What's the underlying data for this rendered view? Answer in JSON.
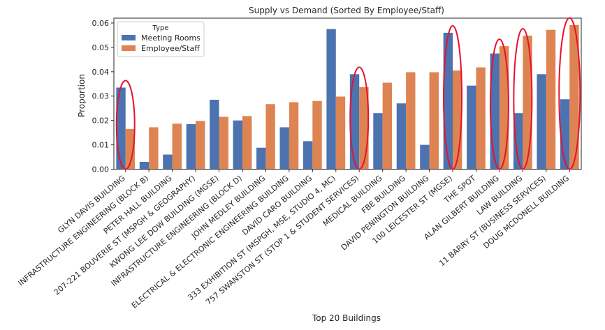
{
  "chart_data": {
    "type": "bar",
    "title": "Supply vs Demand (Sorted By Employee/Staff)",
    "xlabel": "Top 20 Buildings",
    "ylabel": "Proportion",
    "ylim": [
      0,
      0.062
    ],
    "yticks": [
      "0.00",
      "0.01",
      "0.02",
      "0.03",
      "0.04",
      "0.05",
      "0.06"
    ],
    "grid": false,
    "legend": {
      "title": "Type",
      "placement": "top-left"
    },
    "categories": [
      "GLYN DAVIS BUILDING",
      "INFRASTRUCTURE ENGINEERING (BLOCK B)",
      "PETER HALL BUILDING",
      "207-221 BOUVERIE ST (MSPGH & GEOGRAPHY)",
      "KWONG LEE DOW BUILDING (MGSE)",
      "INFRASTRUCTURE ENGINEERING (BLOCK D)",
      "JOHN MEDLEY BUILDING",
      "ELECTRICAL & ELECTRONIC ENGINEERING BUILDING",
      "DAVID CARO BUILDING",
      "333 EXHIBITION ST (MSPGH, MSE, STUDIO 4, MC)",
      "757 SWANSTON ST (STOP 1 & STUDENT SERVICES)",
      "MEDICAL BUILDING",
      "FBE BUILDING",
      "DAVID PENINGTON BUILDING",
      "100 LEICESTER ST (MGSE)",
      "THE SPOT",
      "ALAN GILBERT BUILDING",
      "LAW BUILDING",
      "11 BARRY ST (BUSINESS SERVICES)",
      "DOUG MCDONELL BUILDING"
    ],
    "series": [
      {
        "name": "Meeting Rooms",
        "color": "#4c72b0",
        "values": [
          0.0335,
          0.003,
          0.006,
          0.0185,
          0.0285,
          0.02,
          0.0088,
          0.0172,
          0.0115,
          0.0575,
          0.039,
          0.023,
          0.027,
          0.01,
          0.056,
          0.0343,
          0.0475,
          0.023,
          0.039,
          0.0287
        ]
      },
      {
        "name": "Employee/Staff",
        "color": "#dd8452",
        "values": [
          0.0165,
          0.0172,
          0.0187,
          0.0198,
          0.0215,
          0.0218,
          0.0267,
          0.0275,
          0.028,
          0.0298,
          0.0337,
          0.0355,
          0.0398,
          0.0398,
          0.0405,
          0.0418,
          0.0505,
          0.0548,
          0.0572,
          0.0592
        ]
      }
    ],
    "annotations": {
      "type": "red-ellipse",
      "color": "#e8112d",
      "highlighted_categories": [
        "GLYN DAVIS BUILDING",
        "757 SWANSTON ST (STOP 1 & STUDENT SERVICES)",
        "100 LEICESTER ST (MGSE)",
        "ALAN GILBERT BUILDING",
        "LAW BUILDING",
        "DOUG MCDONELL BUILDING"
      ]
    }
  }
}
